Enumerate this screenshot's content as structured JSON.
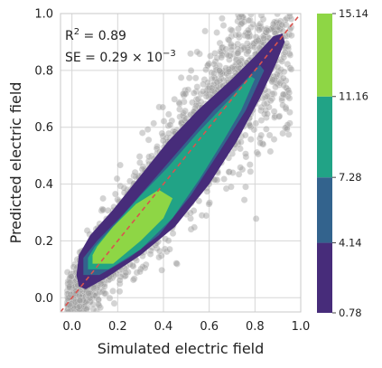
{
  "chart_data": {
    "type": "scatter",
    "xlabel": "Simulated electric field",
    "ylabel": "Predicted electric field",
    "xlim": [
      -0.05,
      1.0
    ],
    "ylim": [
      -0.05,
      1.0
    ],
    "xticks": [
      "0.0",
      "0.2",
      "0.4",
      "0.6",
      "0.8",
      "1.0"
    ],
    "yticks": [
      "0.0",
      "0.2",
      "0.4",
      "0.6",
      "0.8",
      "1.0"
    ],
    "grid": true,
    "annotation": {
      "r2_label": "R",
      "r2_exp": "2",
      "r2_value": " = 0.89",
      "se_label": "SE = 0.29 × 10",
      "se_exp": "−3"
    },
    "scatter_color": "#9e9e9e",
    "identity_line": {
      "style": "dashed",
      "color": "#d9534f",
      "from": [
        -0.05,
        -0.05
      ],
      "to": [
        1.0,
        1.0
      ]
    },
    "density_contours": {
      "levels": [
        0.78,
        4.14,
        7.28,
        11.16,
        15.14
      ],
      "level_labels": [
        "0.78",
        "4.14",
        "7.28",
        "11.16",
        "15.14"
      ],
      "colors": [
        "#472c7a",
        "#33638d",
        "#21a386",
        "#8ed645"
      ],
      "regions": [
        {
          "level_index": 0,
          "outline": [
            [
              0.03,
              0.04
            ],
            [
              0.06,
              0.03
            ],
            [
              0.15,
              0.07
            ],
            [
              0.3,
              0.15
            ],
            [
              0.45,
              0.25
            ],
            [
              0.6,
              0.4
            ],
            [
              0.72,
              0.55
            ],
            [
              0.82,
              0.7
            ],
            [
              0.89,
              0.82
            ],
            [
              0.93,
              0.9
            ],
            [
              0.92,
              0.93
            ],
            [
              0.88,
              0.92
            ],
            [
              0.8,
              0.85
            ],
            [
              0.7,
              0.77
            ],
            [
              0.55,
              0.66
            ],
            [
              0.42,
              0.55
            ],
            [
              0.3,
              0.43
            ],
            [
              0.18,
              0.31
            ],
            [
              0.08,
              0.22
            ],
            [
              0.03,
              0.15
            ],
            [
              0.02,
              0.08
            ]
          ]
        },
        {
          "level_index": 1,
          "outline": [
            [
              0.05,
              0.08
            ],
            [
              0.12,
              0.08
            ],
            [
              0.25,
              0.14
            ],
            [
              0.38,
              0.22
            ],
            [
              0.52,
              0.36
            ],
            [
              0.65,
              0.52
            ],
            [
              0.76,
              0.66
            ],
            [
              0.84,
              0.8
            ],
            [
              0.82,
              0.82
            ],
            [
              0.74,
              0.75
            ],
            [
              0.62,
              0.66
            ],
            [
              0.48,
              0.53
            ],
            [
              0.34,
              0.4
            ],
            [
              0.22,
              0.29
            ],
            [
              0.11,
              0.2
            ],
            [
              0.05,
              0.14
            ]
          ]
        },
        {
          "level_index": 2,
          "outline": [
            [
              0.07,
              0.1
            ],
            [
              0.16,
              0.1
            ],
            [
              0.3,
              0.17
            ],
            [
              0.44,
              0.28
            ],
            [
              0.56,
              0.42
            ],
            [
              0.66,
              0.55
            ],
            [
              0.74,
              0.66
            ],
            [
              0.8,
              0.77
            ],
            [
              0.78,
              0.78
            ],
            [
              0.68,
              0.69
            ],
            [
              0.55,
              0.58
            ],
            [
              0.42,
              0.46
            ],
            [
              0.3,
              0.36
            ],
            [
              0.19,
              0.26
            ],
            [
              0.1,
              0.18
            ],
            [
              0.07,
              0.14
            ]
          ]
        },
        {
          "level_index": 3,
          "outline": [
            [
              0.09,
              0.12
            ],
            [
              0.18,
              0.12
            ],
            [
              0.3,
              0.2
            ],
            [
              0.4,
              0.28
            ],
            [
              0.44,
              0.35
            ],
            [
              0.38,
              0.38
            ],
            [
              0.28,
              0.33
            ],
            [
              0.18,
              0.25
            ],
            [
              0.11,
              0.18
            ],
            [
              0.09,
              0.15
            ]
          ]
        }
      ]
    },
    "colorbar_range": [
      0.78,
      15.14
    ]
  }
}
